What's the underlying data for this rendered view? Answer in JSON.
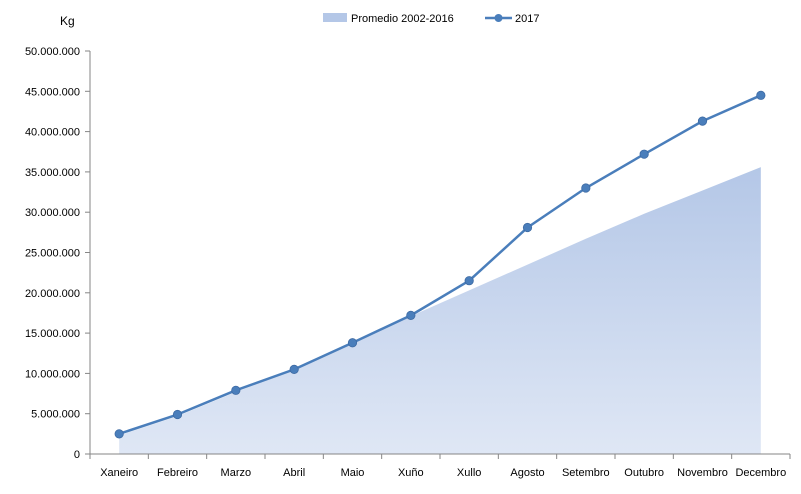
{
  "chart_data": {
    "type": "area",
    "unit_label": "Kg",
    "categories": [
      "Xaneiro",
      "Febreiro",
      "Marzo",
      "Abril",
      "Maio",
      "Xuño",
      "Xullo",
      "Agosto",
      "Setembro",
      "Outubro",
      "Novembro",
      "Decembro"
    ],
    "ylim": [
      0,
      50000000
    ],
    "y_ticks": [
      0,
      5000000,
      10000000,
      15000000,
      20000000,
      25000000,
      30000000,
      35000000,
      40000000,
      45000000,
      50000000
    ],
    "y_tick_labels": [
      "0",
      "5.000.000",
      "10.000.000",
      "15.000.000",
      "20.000.000",
      "25.000.000",
      "30.000.000",
      "35.000.000",
      "40.000.000",
      "45.000.000",
      "50.000.000"
    ],
    "grid": false,
    "legend_position": "top",
    "series": [
      {
        "name": "Promedio 2002-2016",
        "kind": "area",
        "color": "#b4c7e7",
        "values": [
          2300000,
          4700000,
          7700000,
          10400000,
          13700000,
          17100000,
          20300000,
          23500000,
          26700000,
          29800000,
          32700000,
          35600000
        ]
      },
      {
        "name": "2017",
        "kind": "line",
        "color": "#4a7ebb",
        "values": [
          2500000,
          4900000,
          7900000,
          10500000,
          13800000,
          17200000,
          21500000,
          28100000,
          33000000,
          37200000,
          41300000,
          44500000
        ]
      }
    ]
  }
}
